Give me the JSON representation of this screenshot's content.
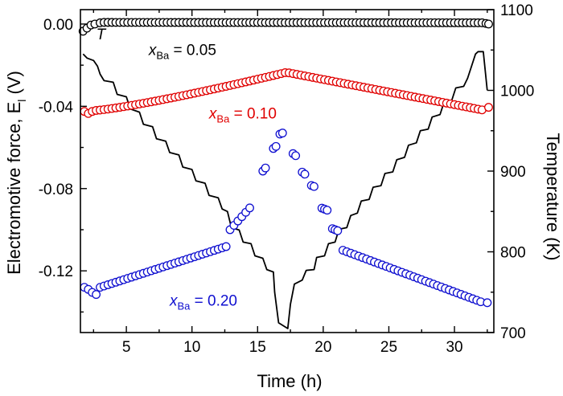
{
  "chart_data": {
    "type": "scatter",
    "xlabel": "Time (h)",
    "ylabel_left": "Electromotive force, E",
    "ylabel_left_sub": "l",
    "ylabel_left_unit": " (V)",
    "ylabel_right": "Temperature (K)",
    "xlim": [
      1.5,
      33
    ],
    "ylim_left": [
      -0.15,
      0.007
    ],
    "ylim_right": [
      700,
      1100
    ],
    "x_ticks": [
      5,
      10,
      15,
      20,
      25,
      30
    ],
    "x_tick_labels": [
      "5",
      "10",
      "15",
      "20",
      "25",
      "30"
    ],
    "y_left_ticks": [
      0.0,
      -0.04,
      -0.08,
      -0.12
    ],
    "y_left_tick_labels": [
      "0.00",
      "-0.04",
      "-0.08",
      "-0.12"
    ],
    "y_right_ticks": [
      700,
      800,
      900,
      1000,
      1100
    ],
    "y_right_tick_labels": [
      "700",
      "800",
      "900",
      "1000",
      "1100"
    ],
    "series": [
      {
        "name": "x_Ba = 0.05",
        "sym": "x",
        "sub": "Ba",
        "eq": " = 0.05",
        "color": "#000000",
        "label_x": 6.7,
        "label_y": -0.015,
        "points": [
          [
            1.7,
            -0.0035
          ],
          [
            2.0,
            -0.002
          ],
          [
            2.3,
            -0.0005
          ],
          [
            2.6,
            0.0
          ],
          [
            3.0,
            0.0006
          ],
          [
            32.4,
            0.0003
          ],
          [
            32.6,
            0.0
          ]
        ],
        "fill": {
          "t0": 3.3,
          "t1": 32.2,
          "step": 0.3,
          "shape": "flat",
          "v0": 0.0008,
          "v1": 0.0006
        }
      },
      {
        "name": "x_Ba = 0.10",
        "sym": "x",
        "sub": "Ba",
        "eq": " = 0.10",
        "color": "#e00000",
        "label_x": 11.3,
        "label_y": -0.046,
        "points": [
          [
            1.8,
            -0.0425
          ],
          [
            2.1,
            -0.0435
          ],
          [
            2.4,
            -0.0425
          ],
          [
            32.6,
            -0.0405
          ]
        ],
        "fill": {
          "t0": 2.7,
          "t1": 32.3,
          "step": 0.3,
          "shape": "peak",
          "v0": -0.042,
          "peak_t": 17.2,
          "v_peak": -0.0235,
          "v1": -0.042
        }
      },
      {
        "name": "x_Ba = 0.20",
        "sym": "x",
        "sub": "Ba",
        "eq": " = 0.20",
        "color": "#1010d0",
        "label_x": 8.3,
        "label_y": -0.137,
        "points": [
          [
            1.8,
            -0.128
          ],
          [
            2.1,
            -0.129
          ],
          [
            2.4,
            -0.1305
          ],
          [
            2.7,
            -0.1315
          ],
          [
            15.4,
            -0.0715
          ],
          [
            15.6,
            -0.07
          ],
          [
            16.2,
            -0.0605
          ],
          [
            16.4,
            -0.0595
          ],
          [
            16.7,
            -0.0535
          ],
          [
            16.9,
            -0.053
          ],
          [
            17.7,
            -0.063
          ],
          [
            17.9,
            -0.064
          ],
          [
            18.4,
            -0.072
          ],
          [
            18.6,
            -0.073
          ],
          [
            19.1,
            -0.0785
          ],
          [
            19.3,
            -0.079
          ],
          [
            19.9,
            -0.0895
          ],
          [
            20.1,
            -0.09
          ],
          [
            20.3,
            -0.0905
          ],
          [
            20.7,
            -0.0995
          ],
          [
            20.9,
            -0.1
          ],
          [
            21.1,
            -0.1005
          ],
          [
            32.5,
            -0.1355
          ]
        ],
        "fill_a": {
          "t0": 3.0,
          "t1": 12.7,
          "step": 0.3,
          "shape": "linear",
          "v0": -0.128,
          "v1": -0.108
        },
        "fill_b": {
          "t0": 12.9,
          "t1": 14.6,
          "step": 0.3,
          "shape": "linear",
          "v0": -0.1,
          "v1": -0.088
        },
        "fill_c": {
          "t0": 21.5,
          "t1": 32.2,
          "step": 0.3,
          "shape": "linear",
          "v0": -0.11,
          "v1": -0.1355
        }
      }
    ],
    "temperature": {
      "name": "T",
      "label": "T",
      "label_x": 2.7,
      "label_y": 1063,
      "color": "#000000",
      "path_points": [
        [
          1.7,
          1045
        ],
        [
          2.0,
          1040
        ],
        [
          2.5,
          1037
        ],
        [
          2.8,
          1030
        ],
        [
          3.0,
          1020
        ],
        [
          3.3,
          1012
        ],
        [
          4.0,
          1010
        ],
        [
          4.3,
          995
        ],
        [
          5.0,
          992
        ],
        [
          5.3,
          977
        ],
        [
          6.0,
          973
        ],
        [
          6.3,
          958
        ],
        [
          7.0,
          955
        ],
        [
          7.3,
          940
        ],
        [
          8.0,
          937
        ],
        [
          8.3,
          923
        ],
        [
          9.0,
          920
        ],
        [
          9.3,
          905
        ],
        [
          10.0,
          902
        ],
        [
          10.3,
          888
        ],
        [
          11.0,
          885
        ],
        [
          11.3,
          870
        ],
        [
          12.0,
          867
        ],
        [
          12.3,
          853
        ],
        [
          12.7,
          850
        ],
        [
          13.0,
          830
        ],
        [
          13.6,
          827
        ],
        [
          13.9,
          812
        ],
        [
          14.5,
          810
        ],
        [
          14.8,
          795
        ],
        [
          15.4,
          792
        ],
        [
          15.7,
          778
        ],
        [
          16.2,
          775
        ],
        [
          16.3,
          750
        ],
        [
          16.6,
          712
        ],
        [
          17.3,
          705
        ],
        [
          17.5,
          735
        ],
        [
          17.8,
          760
        ],
        [
          18.4,
          765
        ],
        [
          18.7,
          777
        ],
        [
          19.3,
          778
        ],
        [
          19.5,
          793
        ],
        [
          20.1,
          795
        ],
        [
          20.4,
          810
        ],
        [
          20.9,
          812
        ],
        [
          21.2,
          828
        ],
        [
          21.8,
          830
        ],
        [
          22.1,
          845
        ],
        [
          22.6,
          848
        ],
        [
          22.9,
          863
        ],
        [
          23.5,
          865
        ],
        [
          23.8,
          880
        ],
        [
          24.4,
          882
        ],
        [
          24.7,
          897
        ],
        [
          25.3,
          899
        ],
        [
          25.6,
          914
        ],
        [
          26.2,
          917
        ],
        [
          26.5,
          932
        ],
        [
          27.1,
          935
        ],
        [
          27.4,
          950
        ],
        [
          28.0,
          952
        ],
        [
          28.3,
          967
        ],
        [
          28.9,
          970
        ],
        [
          29.2,
          985
        ],
        [
          29.8,
          988
        ],
        [
          30.1,
          1003
        ],
        [
          30.7,
          1005
        ],
        [
          31.0,
          1015
        ],
        [
          31.3,
          1030
        ],
        [
          31.6,
          1045
        ],
        [
          31.8,
          1048
        ],
        [
          32.2,
          1048
        ],
        [
          32.5,
          1000
        ]
      ]
    }
  }
}
